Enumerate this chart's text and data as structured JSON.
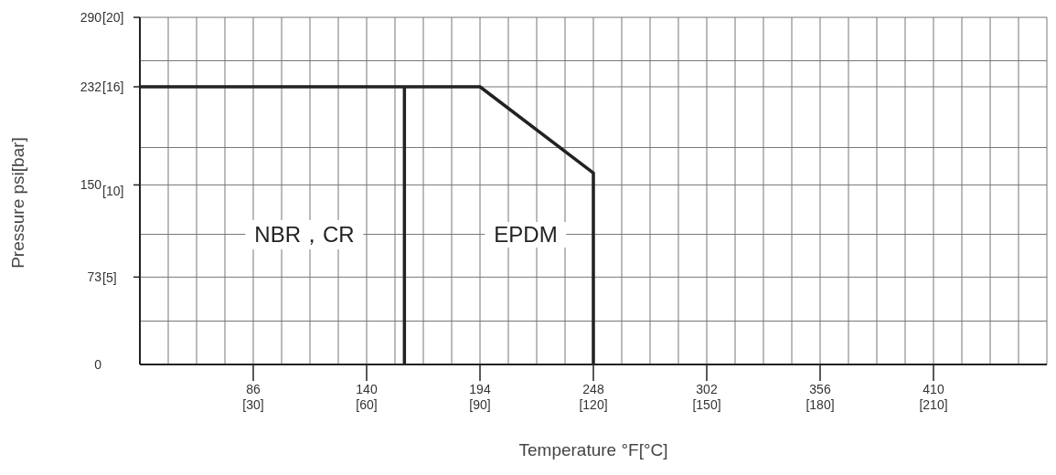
{
  "chart_data": {
    "type": "line",
    "xlabel": "Temperature °F[°C]",
    "ylabel": "Pressure psi[bar]",
    "xlim": [
      32,
      464
    ],
    "xticks": [
      {
        "value": 32,
        "label": null
      },
      {
        "value": 45.5,
        "label": null
      },
      {
        "value": 59,
        "label": null
      },
      {
        "value": 72.5,
        "label": null
      },
      86,
      {
        "value": 99.5,
        "label": null
      },
      {
        "value": 113,
        "label": null
      },
      {
        "value": 126.5,
        "label": null
      },
      140,
      {
        "value": 153.5,
        "label": null
      },
      {
        "value": 167,
        "label": null
      },
      {
        "value": 180.5,
        "label": null
      },
      194,
      {
        "value": 207.5,
        "label": null
      },
      {
        "value": 221,
        "label": null
      },
      {
        "value": 234.5,
        "label": null
      },
      248,
      {
        "value": 261.5,
        "label": null
      },
      {
        "value": 275,
        "label": null
      },
      {
        "value": 288.5,
        "label": null
      },
      302,
      {
        "value": 315.5,
        "label": null
      },
      {
        "value": 329,
        "label": null
      },
      {
        "value": 342.5,
        "label": null
      },
      356,
      {
        "value": 369.5,
        "label": null
      },
      {
        "value": 383,
        "label": null
      },
      {
        "value": 396.5,
        "label": null
      },
      410,
      {
        "value": 423.5,
        "label": null
      },
      {
        "value": 437,
        "label": null
      },
      {
        "value": 450.5,
        "label": null
      },
      {
        "value": 464,
        "label": null
      }
    ],
    "x2lim": [
      0,
      240
    ],
    "x2ticks": [
      {
        "value": 30,
        "label": "[30]"
      },
      {
        "value": 60,
        "label": "[60]"
      },
      {
        "value": 90,
        "label": "[90]"
      },
      {
        "value": 120,
        "label": "[120]"
      },
      {
        "value": 150,
        "label": "[150]"
      },
      {
        "value": 180,
        "label": "[180]"
      },
      {
        "value": 210,
        "label": "[210]"
      }
    ],
    "ylim": [
      0,
      290
    ],
    "yticks": [
      0,
      {
        "value": 36.25,
        "label": null
      },
      73,
      {
        "value": 108.75,
        "label": null
      },
      150,
      {
        "value": 181.25,
        "label": null
      },
      232,
      {
        "value": 253.75,
        "label": null
      },
      290
    ],
    "y2lim": [
      0,
      20
    ],
    "y2ticks": [
      {
        "value": 5,
        "label": "[5]"
      },
      {
        "value": 10,
        "label": "[10]"
      },
      {
        "value": 16,
        "label": "[16]"
      },
      {
        "value": 20,
        "label": "[20]"
      }
    ],
    "grid": true,
    "marker": "none",
    "line_style": "solid",
    "series": [
      {
        "color": "#222222",
        "x": [
          32,
          194,
          248,
          248
        ],
        "values": [
          232,
          232,
          160,
          0
        ]
      },
      {
        "color": "#222222",
        "x": [
          158,
          158
        ],
        "values": [
          232,
          0
        ]
      }
    ],
    "annotations": [
      "NBR，CR",
      "EPDM"
    ]
  }
}
